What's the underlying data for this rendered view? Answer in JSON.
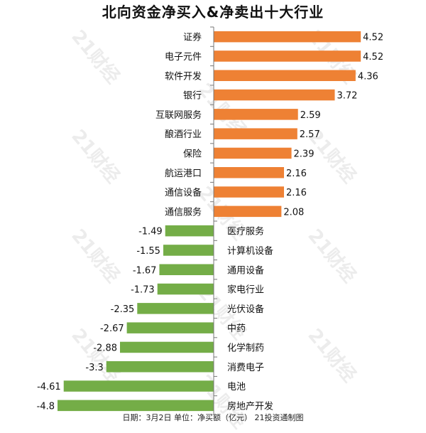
{
  "title": "北向资金净买入&净卖出十大行业",
  "footer": "日期：3月2日 单位：净买额（亿元） 21投资通制图",
  "watermark": "21财经",
  "colors": {
    "positive": "#ee8134",
    "negative": "#74ad47",
    "axis": "#777777"
  },
  "chart_data": {
    "type": "bar",
    "orientation": "horizontal",
    "title": "北向资金净买入&净卖出十大行业",
    "categories": [
      "证券",
      "电子元件",
      "软件开发",
      "银行",
      "互联网服务",
      "酿酒行业",
      "保险",
      "航运港口",
      "通信设备",
      "通信服务",
      "医疗服务",
      "计算机设备",
      "通用设备",
      "家电行业",
      "光伏设备",
      "中药",
      "化学制药",
      "消费电子",
      "电池",
      "房地产开发"
    ],
    "values": [
      4.52,
      4.52,
      4.36,
      3.72,
      2.59,
      2.57,
      2.39,
      2.16,
      2.16,
      2.08,
      -1.49,
      -1.55,
      -1.67,
      -1.73,
      -2.35,
      -2.67,
      -2.88,
      -3.3,
      -4.61,
      -4.8
    ],
    "value_labels": [
      "4.52",
      "4.52",
      "4.36",
      "3.72",
      "2.59",
      "2.57",
      "2.39",
      "2.16",
      "2.16",
      "2.08",
      "-1.49",
      "-1.55",
      "-1.67",
      "-1.73",
      "-2.35",
      "-2.67",
      "-2.88",
      "-3.3",
      "-4.61",
      "-4.8"
    ],
    "xlim": [
      -4.8,
      4.8
    ],
    "grid": false,
    "legend": "none"
  }
}
